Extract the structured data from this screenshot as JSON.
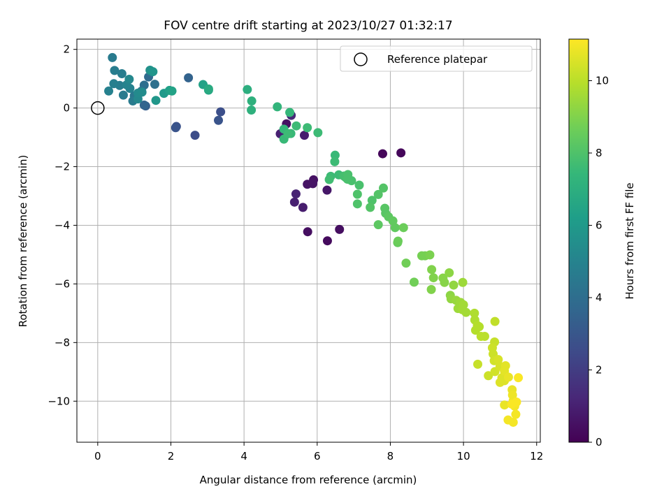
{
  "chart_data": {
    "type": "scatter",
    "title": "FOV centre drift starting at 2023/10/27 01:32:17",
    "xlabel": "Angular distance from reference (arcmin)",
    "ylabel": "Rotation from reference (arcmin)",
    "xlim": [
      -0.57,
      12.1
    ],
    "ylim": [
      -11.4,
      2.35
    ],
    "x_ticks": [
      0,
      2,
      4,
      6,
      8,
      10,
      12
    ],
    "y_ticks": [
      2,
      0,
      -2,
      -4,
      -6,
      -8,
      -10
    ],
    "x_tick_labels": [
      "0",
      "2",
      "4",
      "6",
      "8",
      "10",
      "12"
    ],
    "y_tick_labels": [
      "2",
      "0",
      "−2",
      "−4",
      "−6",
      "−8",
      "−10"
    ],
    "grid": true,
    "legend": {
      "position": "top-right",
      "entries": [
        {
          "label": "Reference platepar",
          "marker": "open-circle"
        }
      ]
    },
    "reference_point": {
      "x": 0,
      "y": 0
    },
    "colorbar": {
      "label": "Hours from first FF file",
      "colormap": "viridis",
      "range": [
        0,
        11.15
      ],
      "ticks": [
        0,
        2,
        4,
        6,
        8,
        10
      ],
      "tick_labels": [
        "0",
        "2",
        "4",
        "6",
        "8",
        "10"
      ]
    },
    "colormap_stops": [
      "#440154",
      "#482878",
      "#3e4a89",
      "#31688e",
      "#26828e",
      "#1f9e89",
      "#35b779",
      "#6ece58",
      "#b5de2b",
      "#fde725"
    ],
    "series": [
      {
        "color_by": "hours",
        "points": [
          [
            7.79,
            -1.56,
            0.2
          ],
          [
            8.29,
            -1.53,
            0.2
          ],
          [
            6.28,
            -4.53,
            0.3
          ],
          [
            6.61,
            -4.14,
            0.4
          ],
          [
            5.74,
            -4.22,
            0.4
          ],
          [
            5.9,
            -2.45,
            0.5
          ],
          [
            5.73,
            -2.6,
            0.6
          ],
          [
            5.88,
            -2.58,
            0.6
          ],
          [
            6.27,
            -2.8,
            0.7
          ],
          [
            5.61,
            -3.39,
            0.9
          ],
          [
            5.38,
            -3.21,
            1.0
          ],
          [
            5.42,
            -2.93,
            1.1
          ],
          [
            5.16,
            -0.54,
            0.5
          ],
          [
            5.09,
            -0.74,
            0.7
          ],
          [
            5.65,
            -0.93,
            0.9
          ],
          [
            4.99,
            -0.88,
            1.0
          ],
          [
            5.29,
            -0.25,
            1.3
          ],
          [
            3.36,
            -0.13,
            2.7
          ],
          [
            3.3,
            -0.42,
            2.9
          ],
          [
            2.66,
            -0.93,
            2.6
          ],
          [
            2.15,
            -0.63,
            2.8
          ],
          [
            2.13,
            -0.67,
            2.9
          ],
          [
            2.48,
            1.03,
            3.5
          ],
          [
            1.31,
            0.07,
            3.3
          ],
          [
            1.27,
            0.1,
            3.6
          ],
          [
            1.39,
            1.06,
            3.8
          ],
          [
            1.27,
            0.78,
            4.0
          ],
          [
            1.46,
            1.22,
            4.2
          ],
          [
            1.56,
            0.81,
            4.1
          ],
          [
            1.2,
            0.58,
            4.3
          ],
          [
            1.0,
            0.42,
            4.4
          ],
          [
            0.96,
            0.24,
            4.6
          ],
          [
            0.7,
            0.44,
            4.6
          ],
          [
            0.4,
            1.72,
            4.6
          ],
          [
            0.46,
            1.28,
            4.7
          ],
          [
            0.66,
            1.17,
            4.7
          ],
          [
            0.6,
            0.77,
            4.7
          ],
          [
            0.44,
            0.83,
            4.8
          ],
          [
            0.3,
            0.58,
            4.9
          ],
          [
            0.88,
            0.67,
            4.9
          ],
          [
            0.79,
            0.79,
            5.0
          ],
          [
            0.86,
            0.98,
            5.2
          ],
          [
            1.1,
            0.31,
            5.2
          ],
          [
            1.1,
            0.51,
            5.3
          ],
          [
            1.21,
            0.54,
            5.4
          ],
          [
            1.43,
            1.29,
            5.6
          ],
          [
            1.51,
            1.24,
            5.8
          ],
          [
            1.59,
            0.26,
            5.9
          ],
          [
            1.81,
            0.5,
            6.0
          ],
          [
            1.96,
            0.6,
            6.3
          ],
          [
            2.03,
            0.58,
            6.4
          ],
          [
            2.88,
            0.8,
            6.4
          ],
          [
            3.03,
            0.61,
            6.6
          ],
          [
            3.03,
            0.65,
            6.8
          ],
          [
            4.09,
            0.63,
            7.0
          ],
          [
            4.21,
            0.24,
            7.1
          ],
          [
            4.2,
            -0.07,
            7.1
          ],
          [
            4.91,
            0.04,
            7.3
          ],
          [
            5.09,
            -0.72,
            7.4
          ],
          [
            5.25,
            -0.15,
            7.4
          ],
          [
            5.28,
            -0.87,
            7.5
          ],
          [
            5.09,
            -1.06,
            7.5
          ],
          [
            5.2,
            -0.88,
            7.6
          ],
          [
            5.43,
            -0.61,
            7.6
          ],
          [
            5.73,
            -0.67,
            7.6
          ],
          [
            6.02,
            -0.84,
            7.6
          ],
          [
            6.49,
            -1.61,
            7.5
          ],
          [
            6.48,
            -1.83,
            7.6
          ],
          [
            6.59,
            -2.28,
            7.6
          ],
          [
            6.37,
            -2.33,
            7.6
          ],
          [
            6.33,
            -2.44,
            7.7
          ],
          [
            6.73,
            -2.32,
            7.8
          ],
          [
            6.78,
            -2.37,
            7.8
          ],
          [
            6.84,
            -2.27,
            7.9
          ],
          [
            6.83,
            -2.43,
            7.9
          ],
          [
            6.94,
            -2.48,
            7.9
          ],
          [
            7.15,
            -2.63,
            7.9
          ],
          [
            7.1,
            -2.94,
            8.0
          ],
          [
            7.1,
            -3.27,
            8.0
          ],
          [
            7.5,
            -3.15,
            8.0
          ],
          [
            7.45,
            -3.39,
            8.1
          ],
          [
            7.67,
            -2.95,
            8.1
          ],
          [
            7.81,
            -2.73,
            8.1
          ],
          [
            7.85,
            -3.42,
            8.2
          ],
          [
            7.87,
            -3.59,
            8.2
          ],
          [
            7.95,
            -3.71,
            8.3
          ],
          [
            7.67,
            -3.98,
            8.3
          ],
          [
            8.07,
            -3.85,
            8.4
          ],
          [
            8.13,
            -4.08,
            8.4
          ],
          [
            8.2,
            -4.59,
            8.5
          ],
          [
            8.21,
            -4.54,
            8.6
          ],
          [
            8.36,
            -4.08,
            8.6
          ],
          [
            8.43,
            -5.29,
            8.7
          ],
          [
            8.65,
            -5.94,
            8.7
          ],
          [
            8.86,
            -5.04,
            8.8
          ],
          [
            8.95,
            -5.04,
            8.8
          ],
          [
            9.08,
            -5.01,
            8.9
          ],
          [
            9.13,
            -5.51,
            9.0
          ],
          [
            9.18,
            -5.79,
            9.0
          ],
          [
            9.12,
            -6.19,
            9.0
          ],
          [
            9.44,
            -5.8,
            9.1
          ],
          [
            9.48,
            -5.95,
            9.1
          ],
          [
            9.61,
            -5.62,
            9.2
          ],
          [
            9.64,
            -6.39,
            9.2
          ],
          [
            9.66,
            -6.51,
            9.3
          ],
          [
            9.73,
            -6.04,
            9.3
          ],
          [
            9.8,
            -6.56,
            9.4
          ],
          [
            9.92,
            -6.63,
            9.5
          ],
          [
            9.98,
            -5.95,
            9.5
          ],
          [
            9.85,
            -6.84,
            9.5
          ],
          [
            9.97,
            -6.88,
            9.6
          ],
          [
            10.0,
            -6.71,
            9.6
          ],
          [
            10.07,
            -6.97,
            9.6
          ],
          [
            10.3,
            -7.0,
            9.8
          ],
          [
            10.31,
            -7.23,
            9.8
          ],
          [
            10.38,
            -7.42,
            9.9
          ],
          [
            10.33,
            -7.58,
            9.9
          ],
          [
            10.43,
            -7.46,
            9.9
          ],
          [
            10.48,
            -7.79,
            10.0
          ],
          [
            10.58,
            -7.79,
            10.0
          ],
          [
            10.86,
            -7.28,
            10.1
          ],
          [
            10.85,
            -7.98,
            10.2
          ],
          [
            10.39,
            -8.74,
            10.2
          ],
          [
            10.68,
            -9.13,
            10.3
          ],
          [
            10.79,
            -8.18,
            10.3
          ],
          [
            10.81,
            -8.39,
            10.3
          ],
          [
            10.84,
            -8.62,
            10.4
          ],
          [
            10.86,
            -8.99,
            10.4
          ],
          [
            10.95,
            -8.58,
            10.5
          ],
          [
            11.0,
            -8.81,
            10.5
          ],
          [
            11.05,
            -9.2,
            10.6
          ],
          [
            11.0,
            -9.36,
            10.6
          ],
          [
            11.12,
            -9.3,
            10.6
          ],
          [
            11.15,
            -8.79,
            10.7
          ],
          [
            11.12,
            -8.97,
            10.7
          ],
          [
            11.12,
            -10.13,
            10.8
          ],
          [
            11.23,
            -9.18,
            10.8
          ],
          [
            11.33,
            -9.61,
            10.8
          ],
          [
            11.34,
            -9.79,
            10.9
          ],
          [
            11.36,
            -9.98,
            10.9
          ],
          [
            11.4,
            -10.17,
            11.0
          ],
          [
            11.43,
            -10.45,
            11.0
          ],
          [
            11.36,
            -10.72,
            11.0
          ],
          [
            11.22,
            -10.64,
            11.0
          ],
          [
            11.5,
            -9.2,
            11.1
          ],
          [
            11.45,
            -10.03,
            11.1
          ],
          [
            11.32,
            -10.1,
            11.1
          ]
        ]
      }
    ]
  }
}
